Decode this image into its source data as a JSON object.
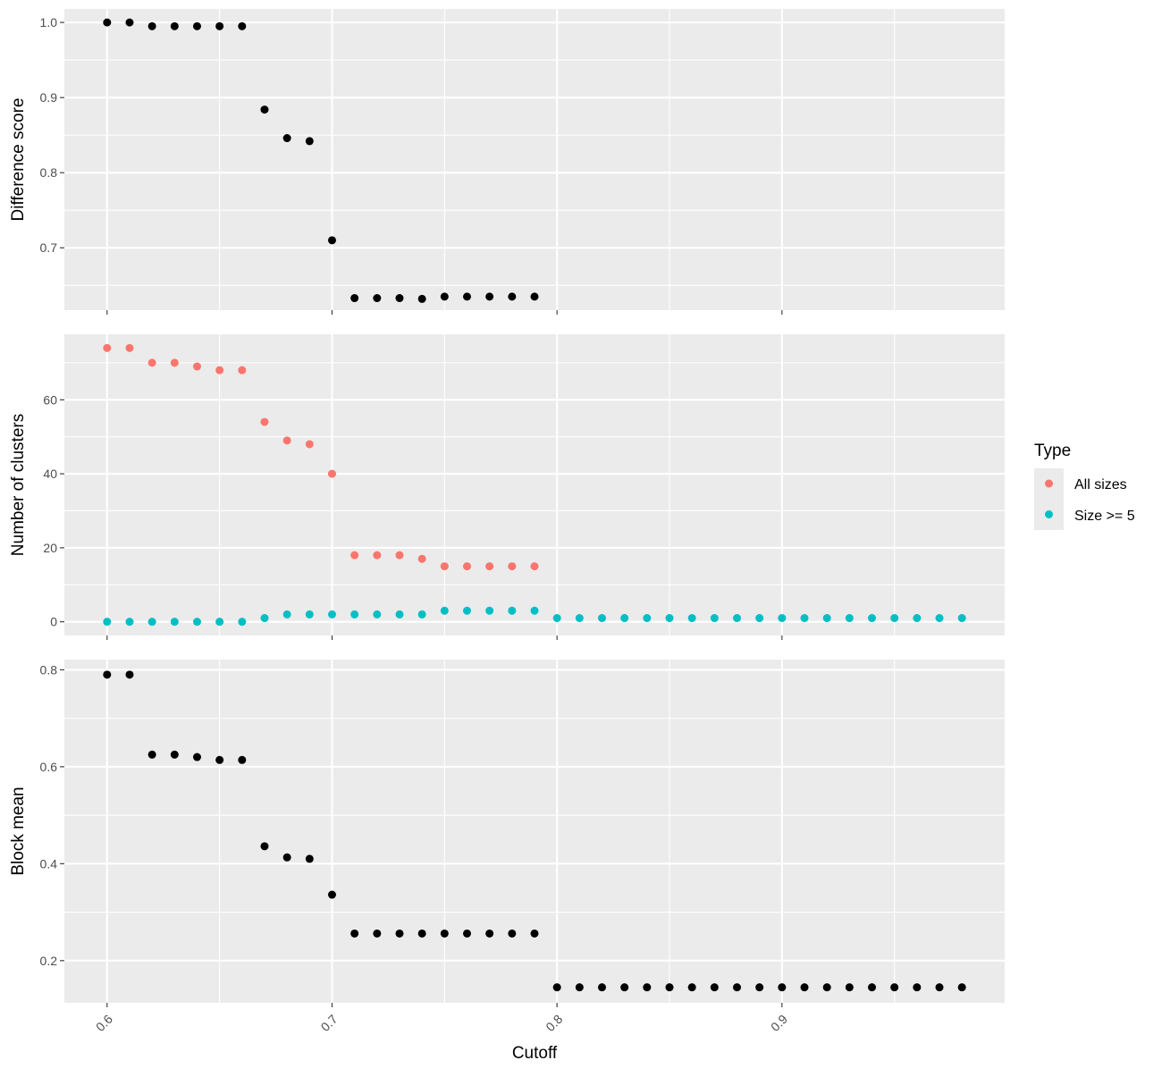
{
  "chart_data": [
    {
      "type": "scatter",
      "ylabel": "Difference score",
      "xlim": [
        0.581,
        0.999
      ],
      "ylim": [
        0.617,
        1.018
      ],
      "y_ticks": [
        0.7,
        0.8,
        0.9,
        1.0
      ],
      "y_tick_labels": [
        "0.7",
        "0.8",
        "0.9",
        "1.0"
      ],
      "series": [
        {
          "color": "#000000",
          "x": [
            0.6,
            0.61,
            0.62,
            0.63,
            0.64,
            0.65,
            0.66,
            0.67,
            0.68,
            0.69,
            0.7,
            0.71,
            0.72,
            0.73,
            0.74,
            0.75,
            0.76,
            0.77,
            0.78,
            0.79
          ],
          "y": [
            1.0,
            1.0,
            0.995,
            0.995,
            0.995,
            0.995,
            0.995,
            0.884,
            0.846,
            0.842,
            0.71,
            0.633,
            0.633,
            0.633,
            0.632,
            0.635,
            0.635,
            0.635,
            0.635,
            0.635
          ]
        }
      ]
    },
    {
      "type": "scatter",
      "ylabel": "Number of clusters",
      "xlim": [
        0.581,
        0.999
      ],
      "ylim": [
        -3.7,
        77.7
      ],
      "y_ticks": [
        0,
        20,
        40,
        60
      ],
      "y_tick_labels": [
        "0",
        "20",
        "40",
        "60"
      ],
      "legend": {
        "title": "Type",
        "position": "right",
        "entries": [
          "All sizes",
          "Size >= 5"
        ]
      },
      "series": [
        {
          "name": "All sizes",
          "color": "#F8766D",
          "x": [
            0.6,
            0.61,
            0.62,
            0.63,
            0.64,
            0.65,
            0.66,
            0.67,
            0.68,
            0.69,
            0.7,
            0.71,
            0.72,
            0.73,
            0.74,
            0.75,
            0.76,
            0.77,
            0.78,
            0.79
          ],
          "y": [
            74,
            74,
            70,
            70,
            69,
            68,
            68,
            54,
            49,
            48,
            40,
            18,
            18,
            18,
            17,
            15,
            15,
            15,
            15,
            15
          ]
        },
        {
          "name": "Size >= 5",
          "color": "#00BFC4",
          "x": [
            0.6,
            0.61,
            0.62,
            0.63,
            0.64,
            0.65,
            0.66,
            0.67,
            0.68,
            0.69,
            0.7,
            0.71,
            0.72,
            0.73,
            0.74,
            0.75,
            0.76,
            0.77,
            0.78,
            0.79,
            0.8,
            0.81,
            0.82,
            0.83,
            0.84,
            0.85,
            0.86,
            0.87,
            0.88,
            0.89,
            0.9,
            0.91,
            0.92,
            0.93,
            0.94,
            0.95,
            0.96,
            0.97,
            0.98
          ],
          "y": [
            0,
            0,
            0,
            0,
            0,
            0,
            0,
            1,
            2,
            2,
            2,
            2,
            2,
            2,
            2,
            3,
            3,
            3,
            3,
            3,
            1,
            1,
            1,
            1,
            1,
            1,
            1,
            1,
            1,
            1,
            1,
            1,
            1,
            1,
            1,
            1,
            1,
            1,
            1
          ]
        }
      ]
    },
    {
      "type": "scatter",
      "ylabel": "Block mean",
      "xlabel": "Cutoff",
      "xlim": [
        0.581,
        0.999
      ],
      "ylim": [
        0.113,
        0.821
      ],
      "x_ticks": [
        0.6,
        0.7,
        0.8,
        0.9
      ],
      "x_tick_labels": [
        "0.6",
        "0.7",
        "0.8",
        "0.9"
      ],
      "y_ticks": [
        0.2,
        0.4,
        0.6,
        0.8
      ],
      "y_tick_labels": [
        "0.2",
        "0.4",
        "0.6",
        "0.8"
      ],
      "series": [
        {
          "color": "#000000",
          "x": [
            0.6,
            0.61,
            0.62,
            0.63,
            0.64,
            0.65,
            0.66,
            0.67,
            0.68,
            0.69,
            0.7,
            0.71,
            0.72,
            0.73,
            0.74,
            0.75,
            0.76,
            0.77,
            0.78,
            0.79,
            0.8,
            0.81,
            0.82,
            0.83,
            0.84,
            0.85,
            0.86,
            0.87,
            0.88,
            0.89,
            0.9,
            0.91,
            0.92,
            0.93,
            0.94,
            0.95,
            0.96,
            0.97,
            0.98
          ],
          "y": [
            0.79,
            0.79,
            0.625,
            0.625,
            0.62,
            0.614,
            0.614,
            0.436,
            0.413,
            0.41,
            0.336,
            0.256,
            0.256,
            0.256,
            0.256,
            0.256,
            0.256,
            0.256,
            0.256,
            0.256,
            0.145,
            0.145,
            0.145,
            0.145,
            0.145,
            0.145,
            0.145,
            0.145,
            0.145,
            0.145,
            0.145,
            0.145,
            0.145,
            0.145,
            0.145,
            0.145,
            0.145,
            0.145,
            0.145
          ]
        }
      ]
    }
  ]
}
